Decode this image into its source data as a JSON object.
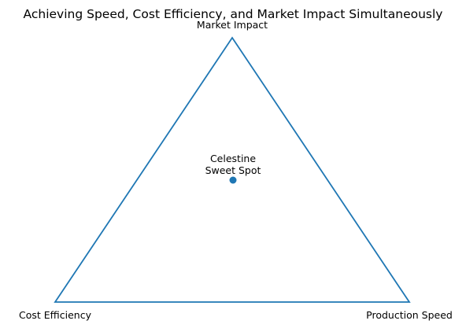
{
  "title": "Achieving Speed, Cost Efficiency, and Market Impact Simultaneously",
  "vertices": {
    "top": "Market Impact",
    "bottom_left": "Cost Efficiency",
    "bottom_right": "Production Speed"
  },
  "sweet_spot": {
    "label_line1": "Celestine",
    "label_line2": "Sweet Spot"
  },
  "colors": {
    "triangle_stroke": "#1f77b4",
    "point_fill": "#1f77b4",
    "text": "#000000",
    "background": "#ffffff"
  }
}
